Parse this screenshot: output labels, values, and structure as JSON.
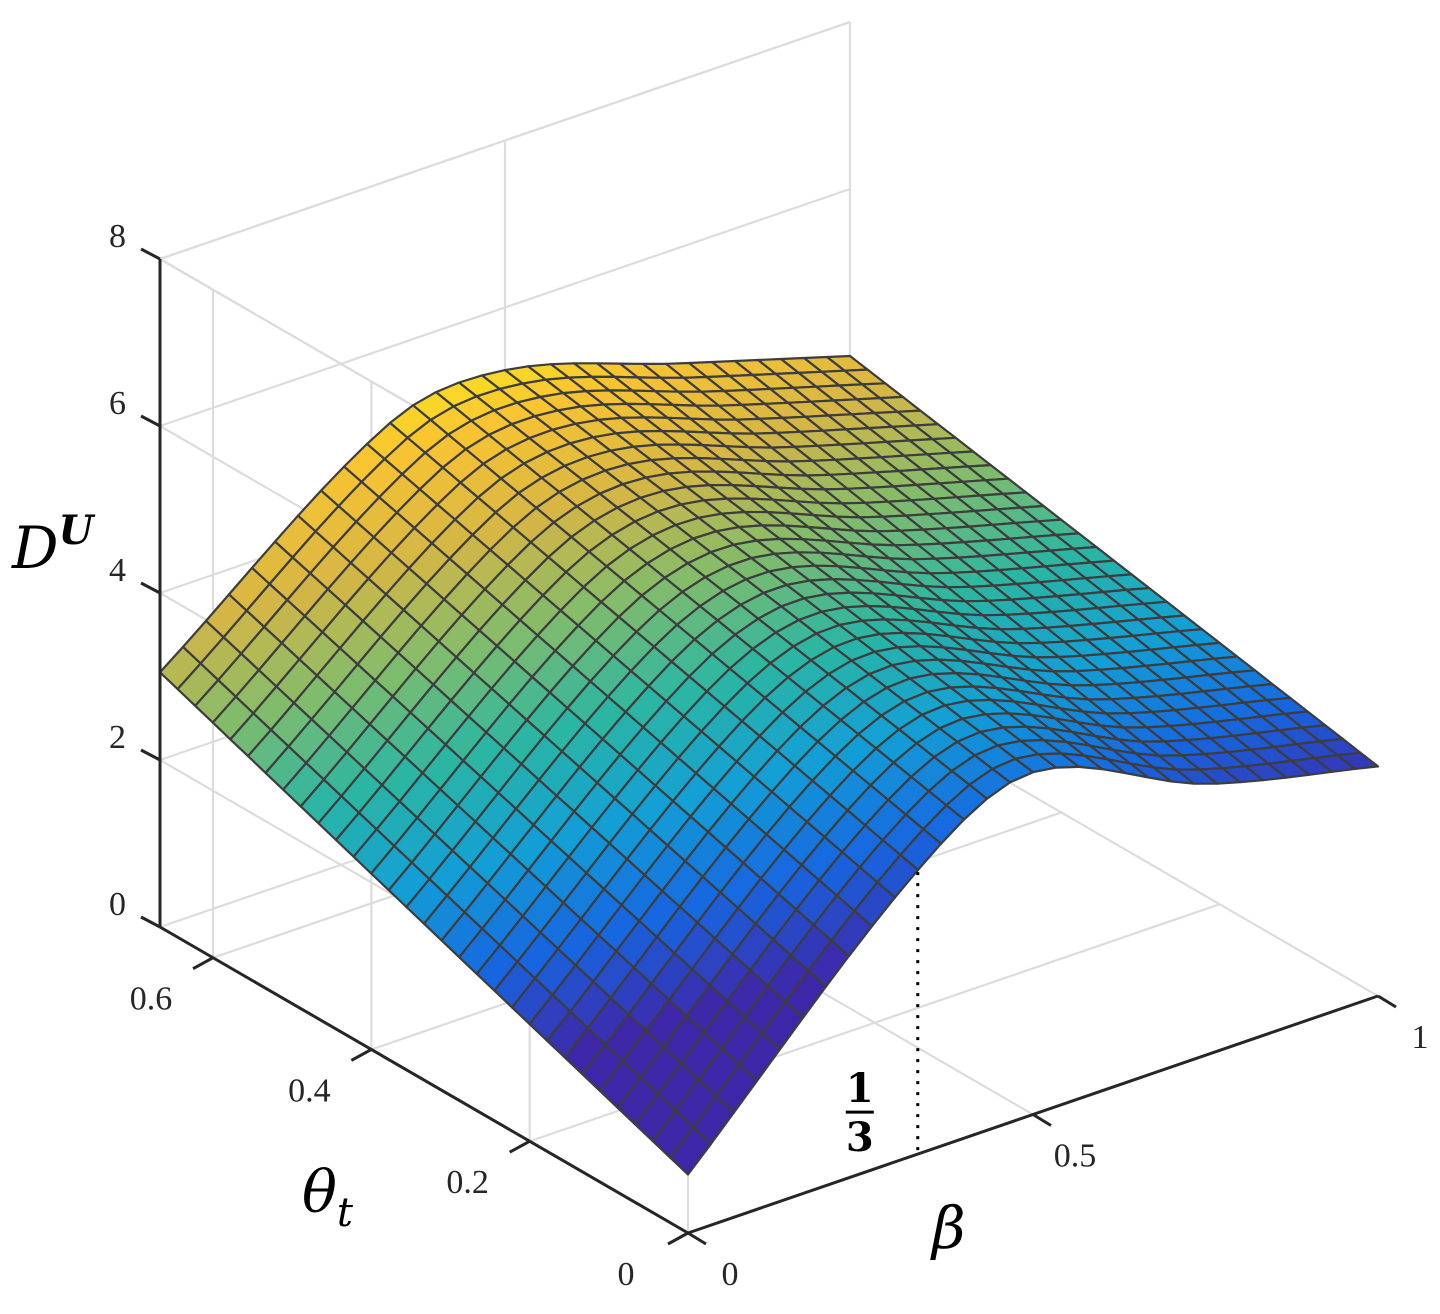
{
  "chart_data": {
    "type": "surface",
    "xlabel": "β",
    "ylabel": "θ",
    "ylabel_subscript": "t",
    "zlabel": "D",
    "zlabel_superscript": "U",
    "xlim": [
      0,
      1
    ],
    "ylim": [
      0,
      0.667
    ],
    "zlim": [
      0,
      8
    ],
    "xticks": [
      {
        "value": 0,
        "label": "0"
      },
      {
        "value": 0.5,
        "label": "0.5"
      },
      {
        "value": 1,
        "label": "1"
      }
    ],
    "yticks": [
      {
        "value": 0,
        "label": "0"
      },
      {
        "value": 0.2,
        "label": "0.2"
      },
      {
        "value": 0.4,
        "label": "0.4"
      },
      {
        "value": 0.6,
        "label": "0.6"
      }
    ],
    "zticks": [
      {
        "value": 0,
        "label": "0"
      },
      {
        "value": 2,
        "label": "2"
      },
      {
        "value": 4,
        "label": "4"
      },
      {
        "value": 6,
        "label": "6"
      },
      {
        "value": 8,
        "label": "8"
      }
    ],
    "grid": true,
    "colormap": "parula",
    "colormap_stops": [
      "#3e26a8",
      "#1766e0",
      "#139fd6",
      "#2bb6a3",
      "#81bc6b",
      "#d6b645",
      "#f9c431",
      "#f9fb15"
    ],
    "mesh_rows": 30,
    "mesh_cols": 30,
    "surface_samples": {
      "beta": [
        0,
        0.333,
        0.5,
        0.75,
        1
      ],
      "theta_t": [
        0,
        0.333,
        0.667
      ],
      "D_U": [
        [
          0.7,
          3.4,
          4.1,
          3.25,
          2.75
        ],
        [
          1.87,
          4.24,
          4.67,
          3.94,
          3.38
        ],
        [
          3.05,
          5.09,
          5.25,
          4.62,
          4.0
        ]
      ]
    },
    "annotation": {
      "beta_value": 0.333,
      "numerator": "1",
      "denominator": "3",
      "line_style": "dotted"
    }
  }
}
